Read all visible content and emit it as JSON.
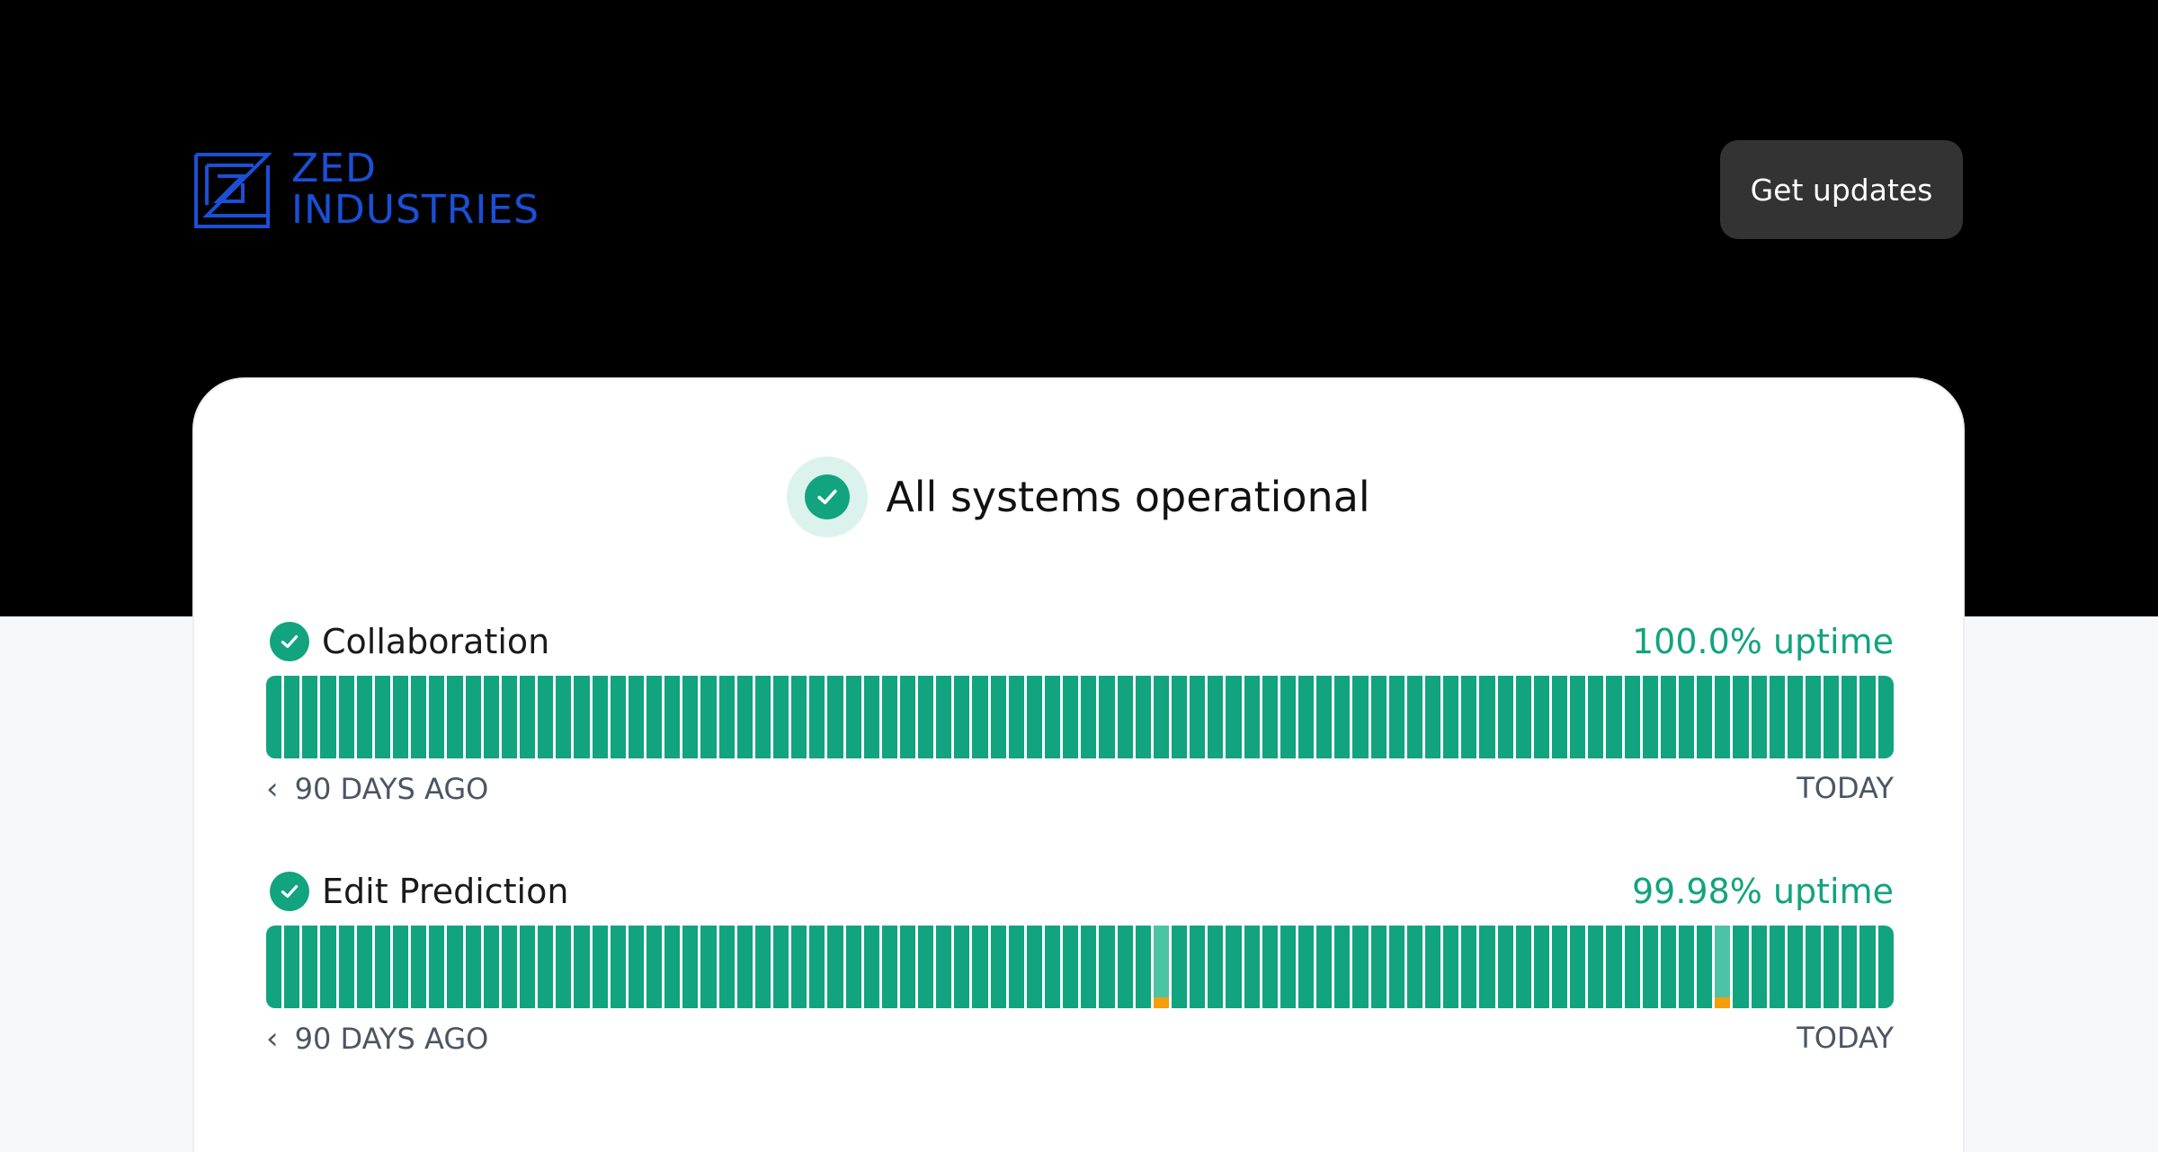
{
  "header": {
    "brand_line1": "ZED",
    "brand_line2": "INDUSTRIES",
    "get_updates_label": "Get updates"
  },
  "overall_status": {
    "text": "All systems operational"
  },
  "components": [
    {
      "name": "Collaboration",
      "uptime": "100.0% uptime",
      "days": 90,
      "degraded_days": [],
      "axis_left": "90 DAYS AGO",
      "axis_right": "TODAY"
    },
    {
      "name": "Edit Prediction",
      "uptime": "99.98% uptime",
      "days": 90,
      "degraded_days": [
        49,
        80
      ],
      "axis_left": "90 DAYS AGO",
      "axis_right": "TODAY"
    }
  ],
  "colors": {
    "brand": "#1a4fd6",
    "operational": "#12a37f",
    "incident": "#f59e0b"
  },
  "icons": {
    "check": "check-icon",
    "chevron": "chevron-left-icon",
    "logo": "zed-logo-icon"
  }
}
